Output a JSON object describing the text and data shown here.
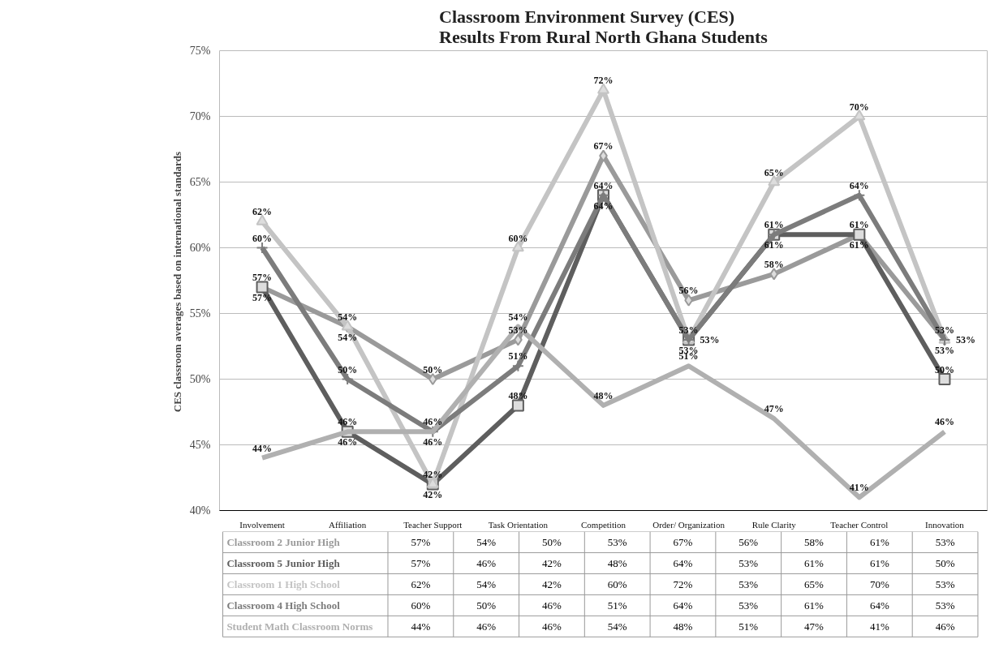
{
  "chart_data": {
    "type": "line",
    "title": "Classroom Environment Survey (CES)\nResults From Rural North Ghana Students",
    "ylabel": "CES classroom averages  based on international standards",
    "categories": [
      "Involvement",
      "Affiliation",
      "Teacher Support",
      "Task Orientation",
      "Competition",
      "Order/ Organization",
      "Rule Clarity",
      "Teacher Control",
      "Innovation"
    ],
    "ylim": [
      40,
      75
    ],
    "yticks": [
      {
        "value": 40,
        "label": "40%"
      },
      {
        "value": 45,
        "label": "45%"
      },
      {
        "value": 50,
        "label": "50%"
      },
      {
        "value": 55,
        "label": "55%"
      },
      {
        "value": 60,
        "label": "60%"
      },
      {
        "value": 65,
        "label": "65%"
      },
      {
        "value": 70,
        "label": "70%"
      },
      {
        "value": 75,
        "label": "75%"
      }
    ],
    "grid": "y",
    "legend": "bottom",
    "series": [
      {
        "name": "Classroom 2 Junior High",
        "color": "#9a9a9a",
        "marker": "diamond",
        "values": [
          57,
          54,
          50,
          53,
          67,
          56,
          58,
          61,
          53
        ],
        "value_labels": [
          "57%",
          "54%",
          "50%",
          "53%",
          "67%",
          "56%",
          "58%",
          "61%",
          "53%"
        ]
      },
      {
        "name": "Classroom 5 Junior High",
        "color": "#5e5e5e",
        "marker": "square",
        "values": [
          57,
          46,
          42,
          48,
          64,
          53,
          61,
          61,
          50
        ],
        "value_labels": [
          "57%",
          "46%",
          "42%",
          "48%",
          "64%",
          "53%",
          "61%",
          "61%",
          "50%"
        ]
      },
      {
        "name": "Classroom 1 High School",
        "color": "#c4c4c4",
        "marker": "triangle",
        "values": [
          62,
          54,
          42,
          60,
          72,
          53,
          65,
          70,
          53
        ],
        "value_labels": [
          "62%",
          "54%",
          "42%",
          "60%",
          "72%",
          "53%",
          "65%",
          "70%",
          "53%"
        ]
      },
      {
        "name": "Classroom 4 High School",
        "color": "#7c7c7c",
        "marker": "cross",
        "values": [
          60,
          50,
          46,
          51,
          64,
          53,
          61,
          64,
          53
        ],
        "value_labels": [
          "60%",
          "50%",
          "46%",
          "51%",
          "64%",
          "53%",
          "61%",
          "64%",
          "53%"
        ]
      },
      {
        "name": "Student Math Classroom Norms",
        "color": "#b0b0b0",
        "marker": "none",
        "values": [
          44,
          46,
          46,
          54,
          48,
          51,
          47,
          41,
          46
        ],
        "value_labels": [
          "44%",
          "46%",
          "46%",
          "54%",
          "48%",
          "51%",
          "47%",
          "41%",
          "46%"
        ]
      }
    ]
  }
}
